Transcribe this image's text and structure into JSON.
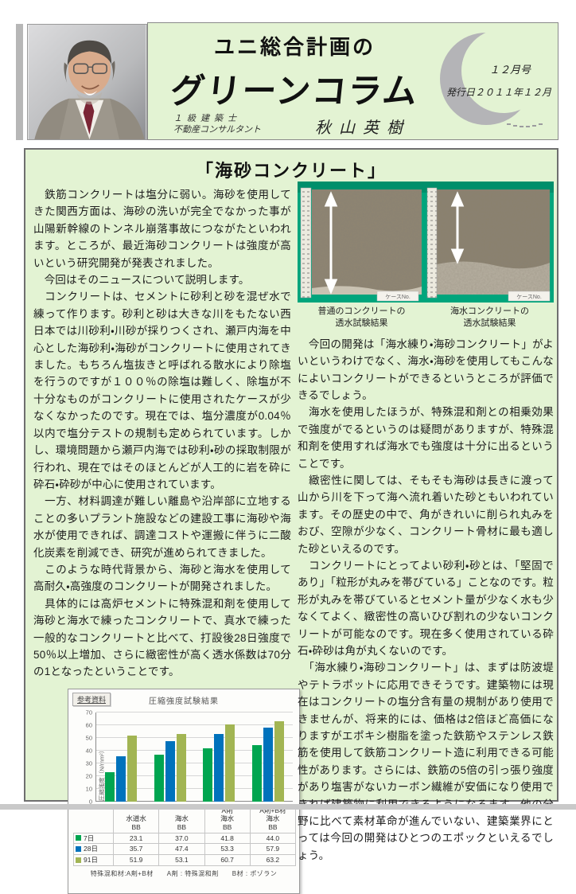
{
  "header": {
    "newsletter_owner": "ユニ総合計画の",
    "newsletter_title": "グリーンコラム",
    "qualification1": "１級建築士",
    "qualification2": "不動産コンサルタント",
    "author_name": "秋山英樹",
    "issue_label": "１２月号",
    "publish_date": "発行日２０１１年１２月"
  },
  "article": {
    "title": "「海砂コンクリート」",
    "left_paragraphs": [
      "　鉄筋コンクリートは塩分に弱い。海砂を使用してきた関西方面は、海砂の洗いが完全でなかった事が山陽新幹線のトンネル崩落事故につながたといわれます。ところが、最近海砂コンクリートは強度が高いという研究開発が発表されました。",
      "　今回はそのニュースについて説明します。",
      "　コンクリートは、セメントに砂利と砂を混ぜ水で練って作ります。砂利と砂は大きな川をもたない西日本では川砂利・川砂が採りつくされ、瀬戸内海を中心とした海砂利・海砂がコンクリートに使用されてきました。もちろん塩抜きと呼ばれる散水により除塩を行うのですが１００％の除塩は難しく、除塩が不十分なものがコンクリートに使用されたケースが少なくなかったのです。現在では、塩分濃度が0.04％以内で塩分テストの規制も定められています。しかし、環境問題から瀬戸内海では砂利・砂の採取制限が行われ、現在ではそのほとんどが人工的に岩を砕に砕石・砕砂が中心に使用されています。",
      "　一方、材料調達が難しい離島や沿岸部に立地することの多いプラント施設などの建設工事に海砂や海水が使用できれば、調達コストや運搬に伴うに二酸化炭素を削減でき、研究が進められてきました。",
      "　このような時代背景から、海砂と海水を使用して高耐久・高強度のコンクリートが開発されました。",
      "　具体的には高炉セメントに特殊混和剤を使用して海砂と海水で練ったコンクリートで、真水で練った一般的なコンクリートと比べて、打設後28日強度で50％以上増加、さらに緻密性が高く透水係数は70分の1となったということです。"
    ],
    "right_paragraphs": [
      "　今回の開発は「海水練り・海砂コンクリート」がよいというわけでなく、海水・海砂を使用してもこんなによいコンクリートができるというところが評価できるでしょう。",
      "　海水を使用したほうが、特殊混和剤との相乗効果で強度がでるというのは疑問がありますが、特殊混和剤を使用すれば海水でも強度は十分に出るということです。",
      "　緻密性に関しては、そもそも海砂は長きに渡って山から川を下って海へ流れ着いた砂ともいわれています。その歴史の中で、角がきれいに削られ丸みをおび、空隙が少なく、コンクリート骨材に最も適した砂といえるのです。",
      "　コンクリートにとってよい砂利・砂とは、「堅固であり」「粒形が丸みを帯びている」ことなのです。粒形が丸みを帯びているとセメント量が少なく水も少なくてよく、緻密性の高いひび割れの少ないコンクリートが可能なのです。現在多く使用されている砕石・砕砂は角が丸くないのです。",
      "　「海水練り・海砂コンクリート」は、まずは防波堤やテトラポットに応用できそうです。建築物には現在はコンクリートの塩分含有量の規制があり使用できませんが、将来的には、価格は2倍ほど高価になりますがエポキシ樹脂を塗った鉄筋やステンレス鉄筋を使用して鉄筋コンクリート造に利用できる可能性があります。さらには、鉄筋の5倍の引っ張り強度があり塩害がないカーボン繊維が安価になり使用できれば建築物に利用できるようになるます。他の分野に比べて素材革命が進んでいない、建築業界にとっては今回の開発はひとつのエポックといえるでしょう。"
    ]
  },
  "photos": {
    "caption_left_line1": "普通のコンクリートの",
    "caption_left_line2": "透水試験結果",
    "caption_right_line1": "海水コンクリートの",
    "caption_right_line2": "透水試験結果",
    "case_label": "ケースNo."
  },
  "chart": {
    "badge": "参考資料",
    "footnote": "特殊混和材:A剤+B材　　A剤 : 特殊混和剤　　B材 : ポゾラン"
  },
  "chart_data": {
    "type": "bar",
    "title": "圧縮強度試験結果",
    "ylabel": "圧縮強度（N/mm²）",
    "ylim": [
      0,
      70
    ],
    "ytick_step": 10,
    "grid": true,
    "legend_position": "table-left",
    "categories": [
      [
        "水道水",
        "BB"
      ],
      [
        "海水",
        "BB"
      ],
      [
        "A剤",
        "海水",
        "BB"
      ],
      [
        "A剤+B材",
        "海水",
        "BB"
      ]
    ],
    "series": [
      {
        "name": "7日",
        "color": "#00a550",
        "values": [
          23.1,
          37.0,
          41.8,
          44.0
        ]
      },
      {
        "name": "28日",
        "color": "#0072bc",
        "values": [
          35.7,
          47.4,
          53.3,
          57.9
        ]
      },
      {
        "name": "91日",
        "color": "#a2b553",
        "values": [
          51.9,
          53.1,
          60.7,
          63.2
        ]
      }
    ]
  },
  "colors": {
    "page_green": "#e3f3d3",
    "photo_felt_green": "#00a57c",
    "series_7d": "#00a550",
    "series_28d": "#0072bc",
    "series_91d": "#a2b553"
  }
}
